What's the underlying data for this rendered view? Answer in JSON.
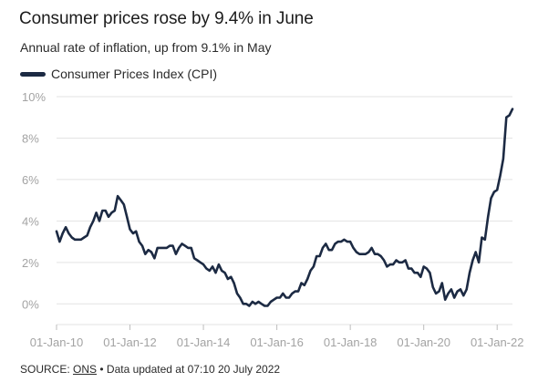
{
  "title": "Consumer prices rose by 9.4% in June",
  "subtitle": "Annual rate of inflation, up from 9.1% in May",
  "legend": {
    "label": "Consumer Prices Index (CPI)"
  },
  "footer": {
    "prefix": "SOURCE: ",
    "source": "ONS",
    "suffix": " • Data updated at 07:10 20 July 2022"
  },
  "colors": {
    "line": "#1c2a43",
    "grid": "#e3e3e3",
    "tick_text": "#a3a3a3"
  },
  "chart_data": {
    "type": "line",
    "title": "Consumer prices rose by 9.4% in June",
    "subtitle": "Annual rate of inflation, up from 9.1% in May",
    "xlabel": "",
    "ylabel": "",
    "grid": true,
    "legend_position": "top-left",
    "ylim": [
      -1,
      10
    ],
    "xlim": [
      "2010-01-01",
      "2022-06-01"
    ],
    "y_ticks": [
      0,
      2,
      4,
      6,
      8,
      10
    ],
    "y_tick_labels": [
      "0%",
      "2%",
      "4%",
      "6%",
      "8%",
      "10%"
    ],
    "x_ticks": [
      "2010-01-01",
      "2012-01-01",
      "2014-01-01",
      "2016-01-01",
      "2018-01-01",
      "2020-01-01",
      "2022-01-01"
    ],
    "x_tick_labels": [
      "01-Jan-10",
      "01-Jan-12",
      "01-Jan-14",
      "01-Jan-16",
      "01-Jan-18",
      "01-Jan-20",
      "01-Jan-22"
    ],
    "series": [
      {
        "name": "Consumer Prices Index (CPI)",
        "color": "#1c2a43",
        "x": [
          "2010-01",
          "2010-02",
          "2010-03",
          "2010-04",
          "2010-05",
          "2010-06",
          "2010-07",
          "2010-08",
          "2010-09",
          "2010-10",
          "2010-11",
          "2010-12",
          "2011-01",
          "2011-02",
          "2011-03",
          "2011-04",
          "2011-05",
          "2011-06",
          "2011-07",
          "2011-08",
          "2011-09",
          "2011-10",
          "2011-11",
          "2011-12",
          "2012-01",
          "2012-02",
          "2012-03",
          "2012-04",
          "2012-05",
          "2012-06",
          "2012-07",
          "2012-08",
          "2012-09",
          "2012-10",
          "2012-11",
          "2012-12",
          "2013-01",
          "2013-02",
          "2013-03",
          "2013-04",
          "2013-05",
          "2013-06",
          "2013-07",
          "2013-08",
          "2013-09",
          "2013-10",
          "2013-11",
          "2013-12",
          "2014-01",
          "2014-02",
          "2014-03",
          "2014-04",
          "2014-05",
          "2014-06",
          "2014-07",
          "2014-08",
          "2014-09",
          "2014-10",
          "2014-11",
          "2014-12",
          "2015-01",
          "2015-02",
          "2015-03",
          "2015-04",
          "2015-05",
          "2015-06",
          "2015-07",
          "2015-08",
          "2015-09",
          "2015-10",
          "2015-11",
          "2015-12",
          "2016-01",
          "2016-02",
          "2016-03",
          "2016-04",
          "2016-05",
          "2016-06",
          "2016-07",
          "2016-08",
          "2016-09",
          "2016-10",
          "2016-11",
          "2016-12",
          "2017-01",
          "2017-02",
          "2017-03",
          "2017-04",
          "2017-05",
          "2017-06",
          "2017-07",
          "2017-08",
          "2017-09",
          "2017-10",
          "2017-11",
          "2017-12",
          "2018-01",
          "2018-02",
          "2018-03",
          "2018-04",
          "2018-05",
          "2018-06",
          "2018-07",
          "2018-08",
          "2018-09",
          "2018-10",
          "2018-11",
          "2018-12",
          "2019-01",
          "2019-02",
          "2019-03",
          "2019-04",
          "2019-05",
          "2019-06",
          "2019-07",
          "2019-08",
          "2019-09",
          "2019-10",
          "2019-11",
          "2019-12",
          "2020-01",
          "2020-02",
          "2020-03",
          "2020-04",
          "2020-05",
          "2020-06",
          "2020-07",
          "2020-08",
          "2020-09",
          "2020-10",
          "2020-11",
          "2020-12",
          "2021-01",
          "2021-02",
          "2021-03",
          "2021-04",
          "2021-05",
          "2021-06",
          "2021-07",
          "2021-08",
          "2021-09",
          "2021-10",
          "2021-11",
          "2021-12",
          "2022-01",
          "2022-02",
          "2022-03",
          "2022-04",
          "2022-05",
          "2022-06"
        ],
        "values": [
          3.5,
          3.0,
          3.4,
          3.7,
          3.4,
          3.2,
          3.1,
          3.1,
          3.1,
          3.2,
          3.3,
          3.7,
          4.0,
          4.4,
          4.0,
          4.5,
          4.5,
          4.2,
          4.4,
          4.5,
          5.2,
          5.0,
          4.8,
          4.2,
          3.6,
          3.4,
          3.5,
          3.0,
          2.8,
          2.4,
          2.6,
          2.5,
          2.2,
          2.7,
          2.7,
          2.7,
          2.7,
          2.8,
          2.8,
          2.4,
          2.7,
          2.9,
          2.8,
          2.7,
          2.7,
          2.2,
          2.1,
          2.0,
          1.9,
          1.7,
          1.6,
          1.8,
          1.5,
          1.9,
          1.6,
          1.5,
          1.2,
          1.3,
          1.0,
          0.5,
          0.3,
          0.0,
          0.0,
          -0.1,
          0.1,
          0.0,
          0.1,
          0.0,
          -0.1,
          -0.1,
          0.1,
          0.2,
          0.3,
          0.3,
          0.5,
          0.3,
          0.3,
          0.5,
          0.6,
          0.6,
          1.0,
          0.9,
          1.2,
          1.6,
          1.8,
          2.3,
          2.3,
          2.7,
          2.9,
          2.6,
          2.6,
          2.9,
          3.0,
          3.0,
          3.1,
          3.0,
          3.0,
          2.7,
          2.5,
          2.4,
          2.4,
          2.4,
          2.5,
          2.7,
          2.4,
          2.4,
          2.3,
          2.1,
          1.8,
          1.9,
          1.9,
          2.1,
          2.0,
          2.0,
          2.1,
          1.7,
          1.7,
          1.5,
          1.5,
          1.3,
          1.8,
          1.7,
          1.5,
          0.8,
          0.5,
          0.6,
          1.0,
          0.2,
          0.5,
          0.7,
          0.3,
          0.6,
          0.7,
          0.4,
          0.7,
          1.5,
          2.1,
          2.5,
          2.0,
          3.2,
          3.1,
          4.2,
          5.1,
          5.4,
          5.5,
          6.2,
          7.0,
          9.0,
          9.1,
          9.4
        ]
      }
    ]
  }
}
